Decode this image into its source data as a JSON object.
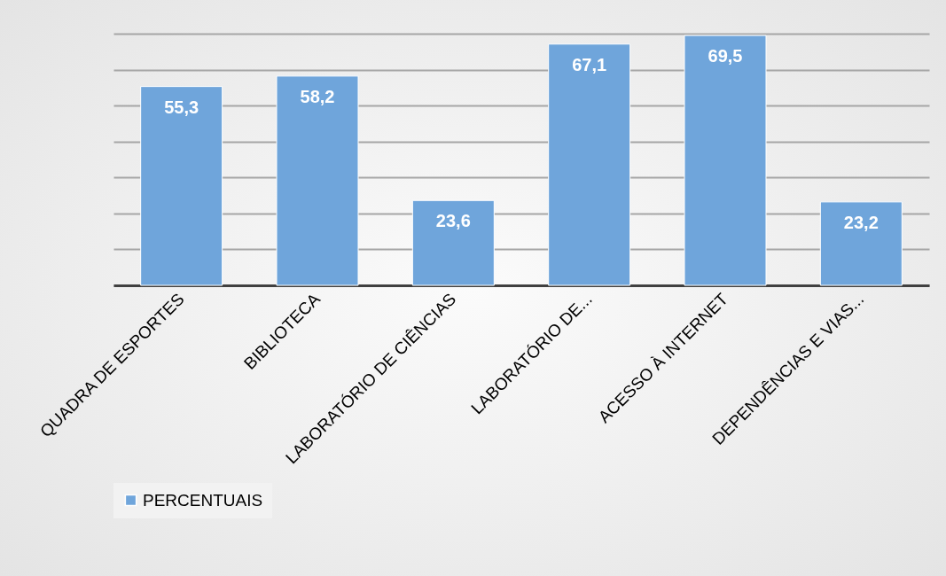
{
  "chart_data": {
    "type": "bar",
    "categories": [
      "QUADRA DE ESPORTES",
      "BIBLIOTECA",
      "LABORATÓRIO DE CIÊNCIAS",
      "LABORATÓRIO DE...",
      "ACESSO À INTERNET",
      "DEPENDÊNCIAS E VIAS..."
    ],
    "series": [
      {
        "name": "PERCENTUAIS",
        "color": "#6fa5db",
        "values": [
          55.3,
          58.2,
          23.6,
          67.1,
          69.5,
          23.2
        ],
        "value_labels": [
          "55,3",
          "58,2",
          "23,6",
          "67,1",
          "69,5",
          "23,2"
        ]
      }
    ],
    "tick_labels": "x",
    "grid": "y",
    "legend": "bottom"
  }
}
